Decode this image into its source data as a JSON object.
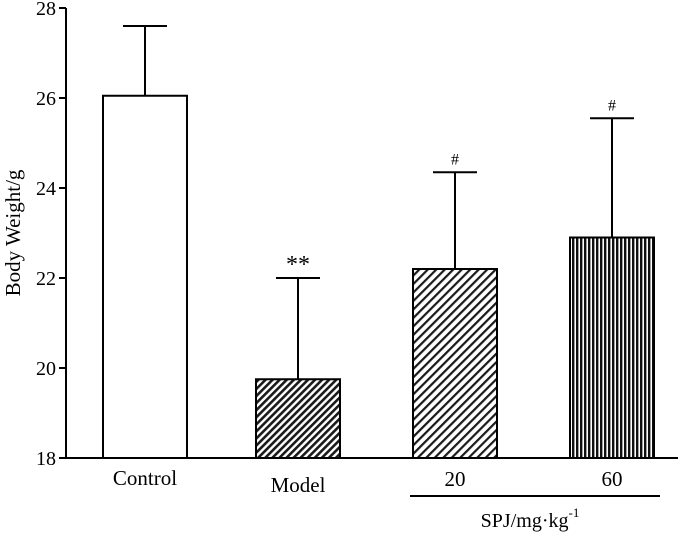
{
  "chart_data": {
    "type": "bar",
    "title": "",
    "xlabel": "",
    "ylabel": "Body Weight/g",
    "ylim": [
      18,
      28
    ],
    "yticks": [
      "18",
      "20",
      "22",
      "24",
      "26",
      "28"
    ],
    "grid": false,
    "categories": [
      "Control",
      "Model",
      "20",
      "60"
    ],
    "values": [
      26.05,
      19.75,
      22.2,
      22.9
    ],
    "errors": [
      1.55,
      2.25,
      2.15,
      2.65
    ],
    "significance": [
      "",
      "**",
      "#",
      "#"
    ],
    "patterns": [
      "solid-white",
      "diagonal-dense",
      "diagonal-sparse",
      "vertical"
    ],
    "group_label": {
      "base": "SPJ/mg·kg",
      "superscript": "-1",
      "spans": [
        "20",
        "60"
      ]
    }
  }
}
